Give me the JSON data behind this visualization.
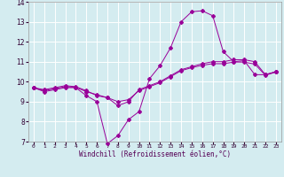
{
  "xlabel": "Windchill (Refroidissement éolien,°C)",
  "ylabel": "",
  "bg_color": "#d4ecf0",
  "grid_color": "#ffffff",
  "line_color": "#990099",
  "xlim": [
    -0.5,
    23.5
  ],
  "ylim": [
    7,
    14
  ],
  "yticks": [
    7,
    8,
    9,
    10,
    11,
    12,
    13,
    14
  ],
  "xticks": [
    0,
    1,
    2,
    3,
    4,
    5,
    6,
    7,
    8,
    9,
    10,
    11,
    12,
    13,
    14,
    15,
    16,
    17,
    18,
    19,
    20,
    21,
    22,
    23
  ],
  "series1_x": [
    0,
    1,
    2,
    3,
    4,
    5,
    6,
    7,
    8,
    9,
    10,
    11,
    12,
    13,
    14,
    15,
    16,
    17,
    18,
    19,
    20,
    21,
    22,
    23
  ],
  "series1_y": [
    9.7,
    9.5,
    9.6,
    9.7,
    9.7,
    9.3,
    9.0,
    6.9,
    7.3,
    8.1,
    8.5,
    10.15,
    10.8,
    11.7,
    13.0,
    13.5,
    13.55,
    13.3,
    11.5,
    11.0,
    11.05,
    10.35,
    10.35,
    10.5
  ],
  "series2_x": [
    0,
    1,
    2,
    3,
    4,
    5,
    6,
    7,
    8,
    9,
    10,
    11,
    12,
    13,
    14,
    15,
    16,
    17,
    18,
    19,
    20,
    21,
    22,
    23
  ],
  "series2_y": [
    9.7,
    9.6,
    9.7,
    9.8,
    9.75,
    9.55,
    9.3,
    9.2,
    8.8,
    9.0,
    9.6,
    9.8,
    10.0,
    10.3,
    10.6,
    10.75,
    10.9,
    11.0,
    11.0,
    11.1,
    11.1,
    11.0,
    10.35,
    10.5
  ],
  "series3_x": [
    0,
    1,
    2,
    3,
    4,
    5,
    6,
    7,
    8,
    9,
    10,
    11,
    12,
    13,
    14,
    15,
    16,
    17,
    18,
    19,
    20,
    21,
    22,
    23
  ],
  "series3_y": [
    9.7,
    9.55,
    9.65,
    9.75,
    9.72,
    9.5,
    9.35,
    9.2,
    9.0,
    9.1,
    9.55,
    9.75,
    9.95,
    10.25,
    10.55,
    10.7,
    10.82,
    10.9,
    10.9,
    10.98,
    10.98,
    10.88,
    10.32,
    10.48
  ]
}
